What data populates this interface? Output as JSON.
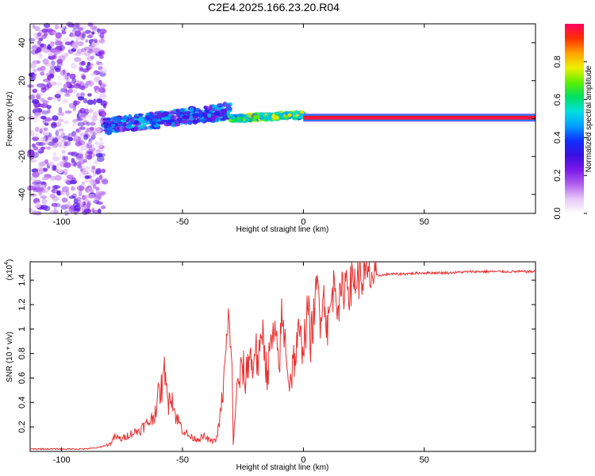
{
  "figure_title": "C2E4.2025.166.23.20.R04",
  "chart_data": [
    {
      "type": "heatmap",
      "name": "spectrogram",
      "xlabel": "Height of straight line (km)",
      "ylabel": "Frequency (Hz)",
      "xlim": [
        -113,
        96
      ],
      "ylim": [
        -50,
        50
      ],
      "xticks": [
        -100,
        -50,
        0,
        50
      ],
      "yticks": [
        -40,
        -20,
        0,
        20,
        40
      ],
      "colorbar": {
        "label": "Normalized spectral amplitude",
        "range": [
          0,
          1
        ],
        "ticks": [
          "0.0",
          "0.2",
          "0.4",
          "0.6",
          "0.8"
        ],
        "colormap": [
          "#ffffff",
          "#e8c8f8",
          "#b060ee",
          "#7a18e8",
          "#3a10e0",
          "#1030ff",
          "#00a0ff",
          "#00e0e0",
          "#00e060",
          "#60f000",
          "#f0f000",
          "#ffa000",
          "#ff3000",
          "#ff0060"
        ]
      },
      "regions": [
        {
          "desc": "broadband noise",
          "x": [
            -113,
            -82
          ],
          "freq": [
            -50,
            50
          ],
          "amp": [
            0.05,
            0.3
          ]
        },
        {
          "desc": "emerging line",
          "x": [
            -82,
            -30
          ],
          "freq_center": [
            -4,
            4
          ],
          "spread_hz": 4,
          "amp": [
            0.2,
            0.55
          ]
        },
        {
          "desc": "stable line",
          "x": [
            -30,
            0
          ],
          "freq_center": [
            0,
            2
          ],
          "spread_hz": 1.5,
          "amp": [
            0.4,
            0.8
          ]
        },
        {
          "desc": "locked line",
          "x": [
            0,
            96
          ],
          "freq_center": [
            0.5,
            0.5
          ],
          "spread_hz": 1,
          "amp": [
            0.95,
            0.95
          ]
        }
      ],
      "grid": false
    },
    {
      "type": "line",
      "name": "snr",
      "xlabel": "Height of straight line (km)",
      "ylabel": "SNR (10 * v/v)",
      "scale_label": "(x10",
      "scale_exponent": "4",
      "xlim": [
        -113,
        96
      ],
      "ylim": [
        0,
        1.55
      ],
      "xticks": [
        -100,
        -50,
        0,
        50
      ],
      "yticks": [
        0.2,
        0.4,
        0.6,
        0.8,
        1.0,
        1.2,
        1.4
      ],
      "line_color": "#e83030",
      "grid": false,
      "series": [
        {
          "x": [
            -113,
            -100,
            -90,
            -85,
            -80,
            -78,
            -75,
            -72,
            -68,
            -65,
            -62,
            -60,
            -58,
            -57,
            -56,
            -55,
            -53,
            -50,
            -47,
            -44,
            -41,
            -38,
            -36,
            -35,
            -34,
            -33,
            -32,
            -31,
            -30,
            -29.5,
            -29,
            -28,
            -27,
            -26,
            -25,
            -24,
            -23,
            -22,
            -21,
            -20,
            -19,
            -18,
            -17,
            -16,
            -15,
            -14,
            -13,
            -12,
            -11,
            -10,
            -9,
            -8,
            -7,
            -6,
            -5,
            -4,
            -3,
            -2,
            -1,
            0,
            1,
            2,
            3,
            4,
            5,
            6,
            7,
            8,
            9,
            10,
            11,
            12,
            13,
            14,
            15,
            16,
            17,
            18,
            19,
            20,
            22,
            25,
            28,
            32,
            36,
            40,
            50,
            60,
            70,
            80,
            90,
            96
          ],
          "y": [
            0.02,
            0.02,
            0.02,
            0.03,
            0.06,
            0.12,
            0.1,
            0.14,
            0.17,
            0.22,
            0.28,
            0.45,
            0.55,
            0.75,
            0.35,
            0.52,
            0.3,
            0.18,
            0.12,
            0.1,
            0.12,
            0.08,
            0.1,
            0.2,
            0.35,
            0.55,
            0.8,
            1.05,
            0.95,
            0.6,
            0.05,
            0.4,
            0.55,
            0.62,
            0.7,
            0.55,
            0.75,
            0.8,
            0.65,
            0.9,
            0.72,
            0.75,
            1.0,
            0.85,
            0.62,
            0.78,
            0.9,
            0.95,
            0.82,
            0.7,
            1.1,
            0.95,
            0.85,
            0.55,
            0.62,
            0.75,
            0.8,
            0.95,
            0.88,
            0.9,
            1.0,
            1.2,
            0.9,
            1.05,
            1.25,
            1.35,
            1.1,
            1.3,
            1.2,
            1.0,
            1.15,
            1.28,
            1.4,
            1.25,
            1.2,
            1.3,
            1.35,
            1.45,
            1.32,
            1.38,
            1.41,
            1.42,
            1.43,
            1.44,
            1.45,
            1.45,
            1.46,
            1.46,
            1.47,
            1.47,
            1.47,
            1.47
          ]
        }
      ]
    }
  ]
}
